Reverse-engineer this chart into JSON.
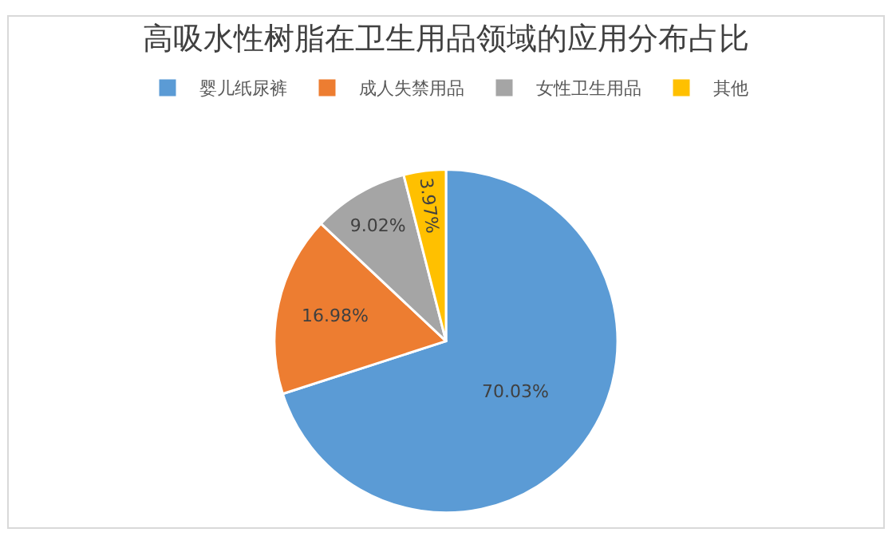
{
  "chart_data": {
    "type": "pie",
    "title": "高吸水性树脂在卫生用品领域的应用分布占比",
    "categories": [
      "婴儿纸尿裤",
      "成人失禁用品",
      "女性卫生用品",
      "其他"
    ],
    "values": [
      70.03,
      16.98,
      9.02,
      3.97
    ],
    "value_labels": [
      "70.03%",
      "16.98%",
      "9.02%",
      "3.97%"
    ],
    "colors": [
      "#5b9bd5",
      "#ed7d31",
      "#a5a5a5",
      "#ffc000"
    ],
    "legend": "top"
  }
}
